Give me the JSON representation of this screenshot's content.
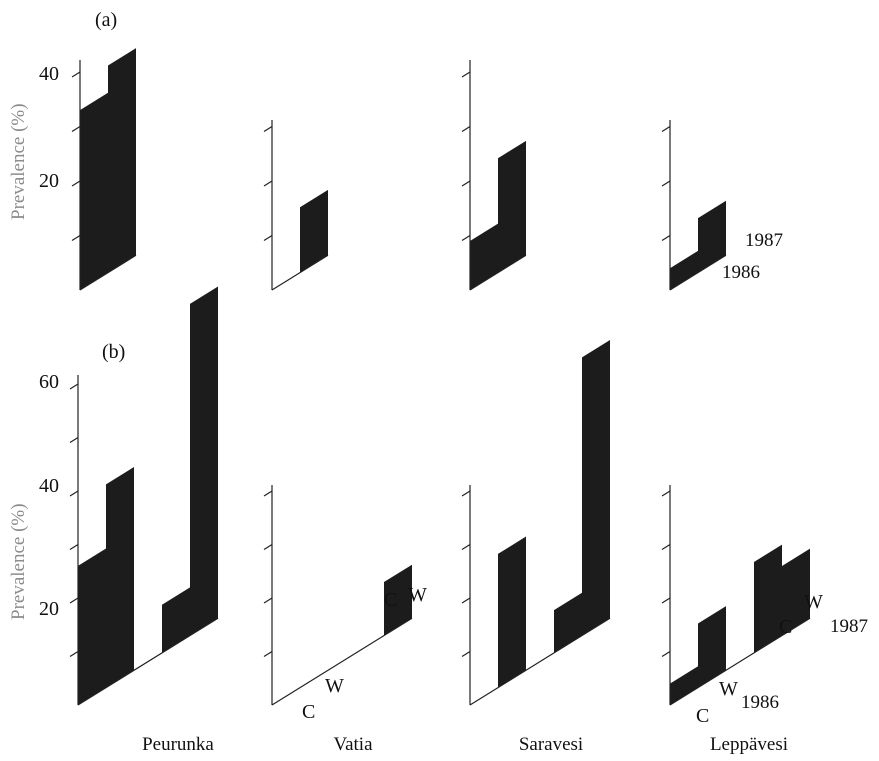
{
  "chart_data": [
    {
      "type": "bar",
      "panel_label": "(a)",
      "ylabel": "Prevalence (%)",
      "ylim": [
        0,
        40
      ],
      "yticks": [
        10,
        20,
        30,
        40
      ],
      "ytick_labels": [
        "20",
        "40"
      ],
      "series_labels": [
        "1986",
        "1987"
      ],
      "categories": [
        "Peurunka",
        "Vatia",
        "Saravesi",
        "Leppävesi"
      ],
      "series": [
        {
          "name": "1986",
          "values": [
            33,
            0,
            9,
            4
          ]
        },
        {
          "name": "1987",
          "values": [
            38,
            12,
            21,
            10
          ]
        }
      ]
    },
    {
      "type": "bar",
      "panel_label": "(b)",
      "ylabel": "Prevalence (%)",
      "ylim": [
        0,
        60
      ],
      "yticks": [
        10,
        20,
        30,
        40,
        50,
        60
      ],
      "ytick_labels": [
        "20",
        "40",
        "60"
      ],
      "group_labels": [
        "C",
        "W"
      ],
      "series_labels": [
        "1986",
        "1987"
      ],
      "categories": [
        "Peurunka",
        "Vatia",
        "Saravesi",
        "Leppävesi"
      ],
      "series": [
        {
          "name": "C 1986",
          "values": [
            26,
            0,
            0,
            4
          ]
        },
        {
          "name": "W 1986",
          "values": [
            38,
            0,
            25,
            12
          ]
        },
        {
          "name": "C 1987",
          "values": [
            9,
            0,
            8,
            17
          ]
        },
        {
          "name": "W 1987",
          "values": [
            62,
            10,
            52,
            13
          ]
        }
      ]
    }
  ]
}
